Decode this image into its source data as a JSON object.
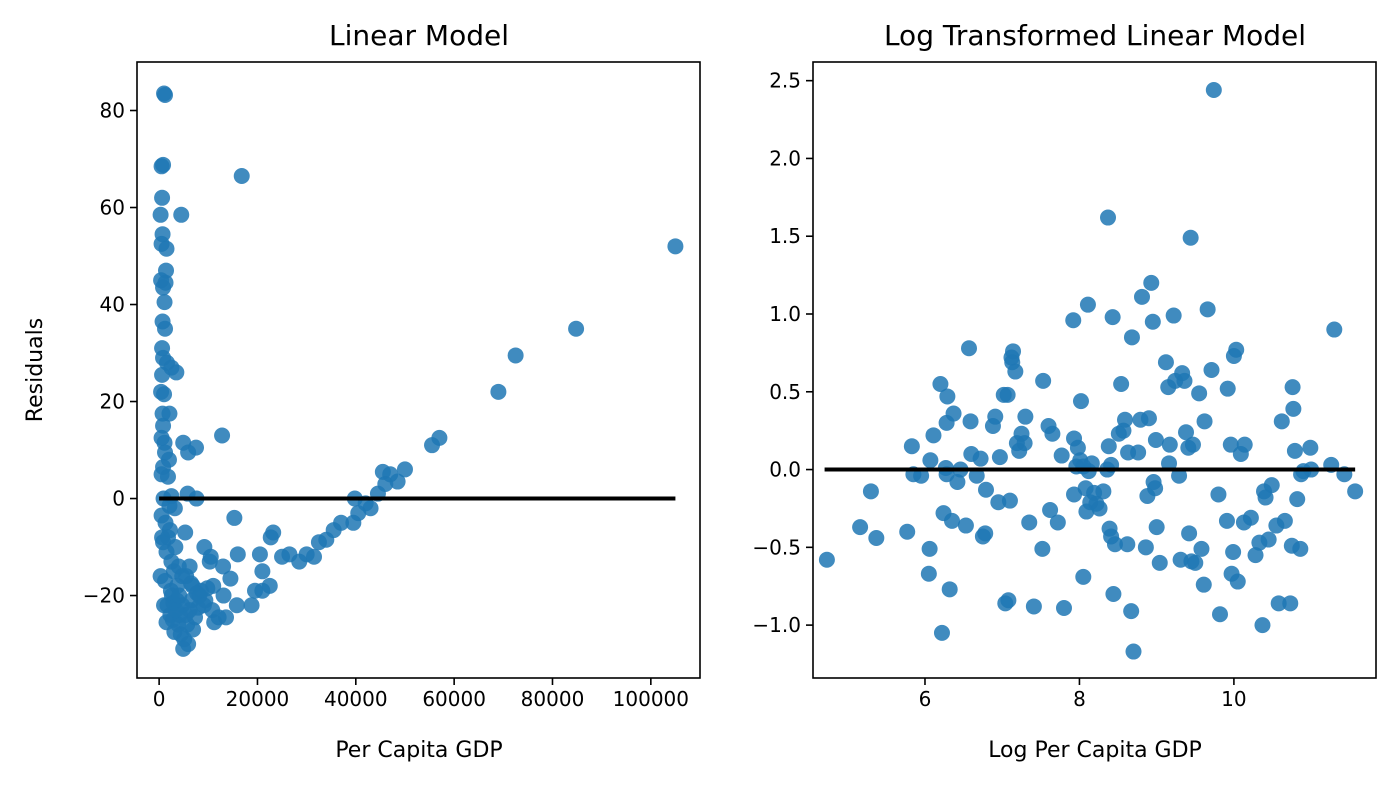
{
  "chart_data": [
    {
      "type": "scatter",
      "title": "Linear Model",
      "xlabel": "Per Capita GDP",
      "ylabel": "Residuals",
      "xlim": [
        -4500,
        110000
      ],
      "ylim": [
        -37,
        90
      ],
      "xticks": [
        0,
        20000,
        40000,
        60000,
        80000,
        100000
      ],
      "xtick_labels": [
        "0",
        "20000",
        "40000",
        "60000",
        "80000",
        "100000"
      ],
      "yticks": [
        -20,
        0,
        20,
        40,
        60,
        80
      ],
      "ytick_labels": [
        "−20",
        "0",
        "20",
        "40",
        "60",
        "80"
      ],
      "color": "#1f77b4",
      "reference_line": {
        "y": 0,
        "x_from": 0,
        "x_to": 105000,
        "color": "#000000"
      },
      "points": [
        [
          1000,
          83.5
        ],
        [
          1200,
          83.2
        ],
        [
          500,
          68.5
        ],
        [
          800,
          68.8
        ],
        [
          600,
          62
        ],
        [
          16800,
          66.5
        ],
        [
          300,
          58.5
        ],
        [
          4500,
          58.5
        ],
        [
          700,
          54.5
        ],
        [
          500,
          52.5
        ],
        [
          1500,
          51.5
        ],
        [
          1400,
          47
        ],
        [
          400,
          45
        ],
        [
          1300,
          44.5
        ],
        [
          800,
          43.5
        ],
        [
          1100,
          40.5
        ],
        [
          700,
          36.5
        ],
        [
          1200,
          35
        ],
        [
          600,
          31
        ],
        [
          800,
          29
        ],
        [
          1600,
          28
        ],
        [
          2500,
          27
        ],
        [
          3500,
          26
        ],
        [
          600,
          25.5
        ],
        [
          400,
          22
        ],
        [
          1000,
          21.5
        ],
        [
          700,
          17.5
        ],
        [
          2100,
          17.5
        ],
        [
          800,
          15
        ],
        [
          500,
          12.5
        ],
        [
          1100,
          11.5
        ],
        [
          4900,
          11.5
        ],
        [
          7500,
          10.5
        ],
        [
          1200,
          9.5
        ],
        [
          5900,
          9.5
        ],
        [
          12800,
          13
        ],
        [
          2000,
          8
        ],
        [
          800,
          6.5
        ],
        [
          500,
          5
        ],
        [
          1800,
          4.5
        ],
        [
          2500,
          0.5
        ],
        [
          900,
          0
        ],
        [
          5800,
          1
        ],
        [
          7600,
          0
        ],
        [
          2100,
          -1.5
        ],
        [
          3200,
          -2
        ],
        [
          500,
          -3.5
        ],
        [
          1300,
          -5
        ],
        [
          2200,
          -6.5
        ],
        [
          600,
          -8
        ],
        [
          800,
          -9
        ],
        [
          5300,
          -7
        ],
        [
          9200,
          -10
        ],
        [
          15300,
          -4
        ],
        [
          10500,
          -12
        ],
        [
          1500,
          -11
        ],
        [
          2500,
          -13
        ],
        [
          3000,
          -15
        ],
        [
          4000,
          -14
        ],
        [
          5500,
          -16
        ],
        [
          6800,
          -18
        ],
        [
          8500,
          -19
        ],
        [
          11000,
          -18
        ],
        [
          13000,
          -14
        ],
        [
          14500,
          -16.5
        ],
        [
          16000,
          -11.5
        ],
        [
          20500,
          -11.5
        ],
        [
          22700,
          -8
        ],
        [
          23200,
          -7
        ],
        [
          25000,
          -12
        ],
        [
          26500,
          -11.5
        ],
        [
          28500,
          -13
        ],
        [
          30000,
          -11.5
        ],
        [
          31500,
          -12
        ],
        [
          32500,
          -9
        ],
        [
          34000,
          -8.5
        ],
        [
          35500,
          -6.5
        ],
        [
          37000,
          -5
        ],
        [
          39500,
          -5
        ],
        [
          40500,
          -3
        ],
        [
          39800,
          0
        ],
        [
          42000,
          -1
        ],
        [
          43000,
          -2
        ],
        [
          44500,
          1
        ],
        [
          46000,
          3
        ],
        [
          45500,
          5.5
        ],
        [
          47000,
          5
        ],
        [
          48500,
          3.5
        ],
        [
          50000,
          6
        ],
        [
          55500,
          11
        ],
        [
          57000,
          12.5
        ],
        [
          69000,
          22
        ],
        [
          72500,
          29.5
        ],
        [
          84800,
          35
        ],
        [
          105000,
          52
        ],
        [
          300,
          -16
        ],
        [
          1200,
          -17
        ],
        [
          2400,
          -19
        ],
        [
          3600,
          -21
        ],
        [
          4700,
          -22
        ],
        [
          5400,
          -24
        ],
        [
          6600,
          -21
        ],
        [
          7900,
          -22.5
        ],
        [
          9400,
          -21
        ],
        [
          10800,
          -23
        ],
        [
          12100,
          -24.5
        ],
        [
          13600,
          -24.5
        ],
        [
          15800,
          -22
        ],
        [
          18800,
          -22
        ],
        [
          19500,
          -19
        ],
        [
          21000,
          -19
        ],
        [
          22500,
          -18
        ],
        [
          21000,
          -15
        ],
        [
          1700,
          -22
        ],
        [
          2800,
          -25
        ],
        [
          3900,
          -26
        ],
        [
          4400,
          -28
        ],
        [
          5100,
          -29
        ],
        [
          5900,
          -30
        ],
        [
          6900,
          -27
        ],
        [
          4900,
          -31
        ],
        [
          3100,
          -27.5
        ],
        [
          2300,
          -24
        ],
        [
          1500,
          -25.5
        ],
        [
          2900,
          -21.5
        ],
        [
          6200,
          -23
        ],
        [
          8200,
          -20
        ],
        [
          11200,
          -25.5
        ],
        [
          13100,
          -20
        ],
        [
          3700,
          -18
        ],
        [
          4700,
          -16
        ],
        [
          6200,
          -14
        ],
        [
          7700,
          -19.5
        ],
        [
          9800,
          -18.5
        ],
        [
          10300,
          -13
        ],
        [
          3300,
          -10
        ],
        [
          1800,
          -8
        ],
        [
          4200,
          -24
        ],
        [
          5700,
          -26
        ],
        [
          7300,
          -24.5
        ],
        [
          9100,
          -22
        ],
        [
          3400,
          -23
        ],
        [
          2600,
          -20
        ],
        [
          4100,
          -20
        ],
        [
          1000,
          -22
        ],
        [
          6500,
          -17.5
        ]
      ]
    },
    {
      "type": "scatter",
      "title": "Log Transformed Linear Model",
      "xlabel": "Log Per Capita GDP",
      "ylabel": "",
      "xlim": [
        4.55,
        11.84
      ],
      "ylim": [
        -1.34,
        2.62
      ],
      "xticks": [
        6,
        8,
        10
      ],
      "xtick_labels": [
        "6",
        "8",
        "10"
      ],
      "yticks": [
        -1.0,
        -0.5,
        0.0,
        0.5,
        1.0,
        1.5,
        2.0,
        2.5
      ],
      "ytick_labels": [
        "−1.0",
        "−0.5",
        "0.0",
        "0.5",
        "1.0",
        "1.5",
        "2.0",
        "2.5"
      ],
      "color": "#1f77b4",
      "reference_line": {
        "y": 0,
        "x_from": 4.7,
        "x_to": 11.57,
        "color": "#000000"
      },
      "points": [
        [
          4.73,
          -0.58
        ],
        [
          5.16,
          -0.37
        ],
        [
          5.3,
          -0.14
        ],
        [
          5.37,
          -0.44
        ],
        [
          5.77,
          -0.4
        ],
        [
          5.83,
          0.15
        ],
        [
          5.85,
          -0.03
        ],
        [
          5.95,
          -0.04
        ],
        [
          6.05,
          -0.67
        ],
        [
          6.06,
          -0.51
        ],
        [
          6.07,
          0.06
        ],
        [
          6.11,
          0.22
        ],
        [
          6.2,
          0.55
        ],
        [
          6.22,
          -1.05
        ],
        [
          6.24,
          -0.28
        ],
        [
          6.27,
          0.01
        ],
        [
          6.28,
          -0.03
        ],
        [
          6.28,
          0.3
        ],
        [
          6.29,
          0.47
        ],
        [
          6.32,
          -0.77
        ],
        [
          6.35,
          -0.33
        ],
        [
          6.37,
          0.36
        ],
        [
          6.42,
          -0.08
        ],
        [
          6.46,
          0.0
        ],
        [
          6.53,
          -0.36
        ],
        [
          6.57,
          0.78
        ],
        [
          6.59,
          0.31
        ],
        [
          6.6,
          0.1
        ],
        [
          6.67,
          -0.04
        ],
        [
          6.72,
          0.07
        ],
        [
          6.75,
          -0.43
        ],
        [
          6.78,
          -0.41
        ],
        [
          6.79,
          -0.13
        ],
        [
          6.88,
          0.28
        ],
        [
          6.91,
          0.34
        ],
        [
          6.95,
          -0.21
        ],
        [
          6.97,
          0.08
        ],
        [
          7.02,
          0.48
        ],
        [
          7.04,
          -0.86
        ],
        [
          7.07,
          0.48
        ],
        [
          7.08,
          -0.84
        ],
        [
          7.1,
          -0.2
        ],
        [
          7.12,
          0.72
        ],
        [
          7.13,
          0.69
        ],
        [
          7.14,
          0.76
        ],
        [
          7.17,
          0.63
        ],
        [
          7.19,
          0.17
        ],
        [
          7.22,
          0.12
        ],
        [
          7.25,
          0.23
        ],
        [
          7.29,
          0.17
        ],
        [
          7.3,
          0.34
        ],
        [
          7.35,
          -0.34
        ],
        [
          7.41,
          -0.88
        ],
        [
          7.52,
          -0.51
        ],
        [
          7.53,
          0.57
        ],
        [
          7.6,
          0.28
        ],
        [
          7.62,
          -0.26
        ],
        [
          7.65,
          0.23
        ],
        [
          7.72,
          -0.34
        ],
        [
          7.77,
          0.09
        ],
        [
          7.8,
          -0.89
        ],
        [
          7.92,
          0.96
        ],
        [
          7.93,
          0.2
        ],
        [
          7.93,
          -0.16
        ],
        [
          7.96,
          0.02
        ],
        [
          7.98,
          0.14
        ],
        [
          8.01,
          0.06
        ],
        [
          8.02,
          0.44
        ],
        [
          8.05,
          0.02
        ],
        [
          8.05,
          -0.69
        ],
        [
          8.08,
          -0.12
        ],
        [
          8.09,
          -0.27
        ],
        [
          8.11,
          1.06
        ],
        [
          8.12,
          -0.01
        ],
        [
          8.14,
          -0.21
        ],
        [
          8.16,
          0.04
        ],
        [
          8.19,
          -0.15
        ],
        [
          8.22,
          -0.22
        ],
        [
          8.26,
          -0.25
        ],
        [
          8.31,
          -0.14
        ],
        [
          8.36,
          0.0
        ],
        [
          8.37,
          1.62
        ],
        [
          8.38,
          0.15
        ],
        [
          8.39,
          -0.38
        ],
        [
          8.41,
          0.03
        ],
        [
          8.41,
          -0.43
        ],
        [
          8.43,
          0.98
        ],
        [
          8.44,
          -0.8
        ],
        [
          8.46,
          -0.48
        ],
        [
          8.51,
          0.23
        ],
        [
          8.54,
          0.55
        ],
        [
          8.57,
          0.25
        ],
        [
          8.59,
          0.32
        ],
        [
          8.62,
          -0.48
        ],
        [
          8.63,
          0.11
        ],
        [
          8.67,
          -0.91
        ],
        [
          8.68,
          0.85
        ],
        [
          8.7,
          -1.17
        ],
        [
          8.76,
          0.11
        ],
        [
          8.79,
          0.32
        ],
        [
          8.81,
          1.11
        ],
        [
          8.86,
          -0.5
        ],
        [
          8.88,
          -0.17
        ],
        [
          8.9,
          0.33
        ],
        [
          8.93,
          1.2
        ],
        [
          8.95,
          0.95
        ],
        [
          8.96,
          -0.08
        ],
        [
          8.98,
          -0.12
        ],
        [
          8.99,
          0.19
        ],
        [
          9.0,
          -0.37
        ],
        [
          9.04,
          -0.6
        ],
        [
          9.12,
          0.69
        ],
        [
          9.15,
          0.53
        ],
        [
          9.16,
          0.04
        ],
        [
          9.17,
          0.16
        ],
        [
          9.22,
          0.99
        ],
        [
          9.24,
          0.57
        ],
        [
          9.29,
          -0.04
        ],
        [
          9.31,
          -0.58
        ],
        [
          9.33,
          0.62
        ],
        [
          9.36,
          0.57
        ],
        [
          9.38,
          0.24
        ],
        [
          9.41,
          0.14
        ],
        [
          9.42,
          -0.41
        ],
        [
          9.44,
          1.49
        ],
        [
          9.45,
          -0.59
        ],
        [
          9.47,
          0.16
        ],
        [
          9.5,
          -0.6
        ],
        [
          9.55,
          0.49
        ],
        [
          9.58,
          -0.51
        ],
        [
          9.61,
          -0.74
        ],
        [
          9.62,
          0.31
        ],
        [
          9.66,
          1.03
        ],
        [
          9.71,
          0.64
        ],
        [
          9.74,
          2.44
        ],
        [
          9.8,
          -0.16
        ],
        [
          9.82,
          -0.93
        ],
        [
          9.91,
          -0.33
        ],
        [
          9.92,
          0.52
        ],
        [
          9.96,
          0.16
        ],
        [
          9.97,
          -0.67
        ],
        [
          9.99,
          -0.53
        ],
        [
          10.0,
          0.73
        ],
        [
          10.03,
          0.77
        ],
        [
          10.05,
          -0.72
        ],
        [
          10.09,
          0.1
        ],
        [
          10.13,
          -0.34
        ],
        [
          10.14,
          0.16
        ],
        [
          10.22,
          -0.31
        ],
        [
          10.28,
          -0.55
        ],
        [
          10.33,
          -0.47
        ],
        [
          10.37,
          -1.0
        ],
        [
          10.39,
          -0.14
        ],
        [
          10.41,
          -0.18
        ],
        [
          10.45,
          -0.45
        ],
        [
          10.49,
          -0.1
        ],
        [
          10.55,
          -0.36
        ],
        [
          10.58,
          -0.86
        ],
        [
          10.62,
          0.31
        ],
        [
          10.66,
          -0.33
        ],
        [
          10.73,
          -0.86
        ],
        [
          10.75,
          -0.49
        ],
        [
          10.76,
          0.53
        ],
        [
          10.77,
          0.39
        ],
        [
          10.79,
          0.12
        ],
        [
          10.82,
          -0.19
        ],
        [
          10.86,
          -0.51
        ],
        [
          10.87,
          -0.03
        ],
        [
          10.9,
          -0.01
        ],
        [
          10.99,
          0.14
        ],
        [
          11.0,
          0.0
        ],
        [
          11.26,
          0.03
        ],
        [
          11.3,
          0.9
        ],
        [
          11.43,
          -0.03
        ],
        [
          11.57,
          -0.14
        ]
      ]
    }
  ]
}
